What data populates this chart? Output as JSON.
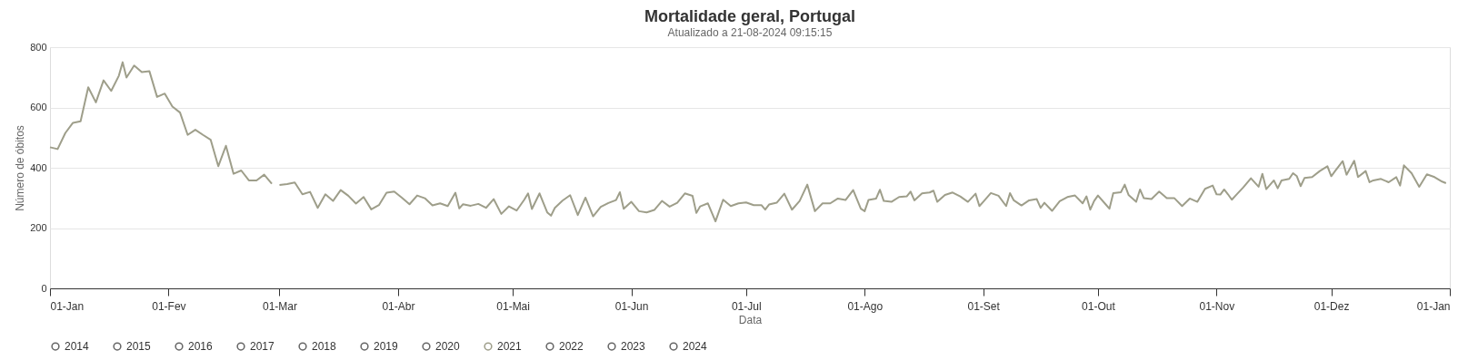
{
  "chart_data": {
    "type": "line",
    "title": "Mortalidade geral, Portugal",
    "subtitle": "Atualizado a 21-08-2024 09:15:15",
    "xlabel": "Data",
    "ylabel": "Número de óbitos",
    "ylim": [
      0,
      800
    ],
    "yticks": [
      0,
      200,
      400,
      600,
      800
    ],
    "xlim": [
      "2020-01-01",
      "2021-01-01"
    ],
    "xticks": [
      {
        "value": "2020-01-01",
        "label": "01-Jan"
      },
      {
        "value": "2020-02-01",
        "label": "01-Fev"
      },
      {
        "value": "2020-03-01",
        "label": "01-Mar"
      },
      {
        "value": "2020-04-01",
        "label": "01-Abr"
      },
      {
        "value": "2020-05-01",
        "label": "01-Mai"
      },
      {
        "value": "2020-06-01",
        "label": "01-Jun"
      },
      {
        "value": "2020-07-01",
        "label": "01-Jul"
      },
      {
        "value": "2020-08-01",
        "label": "01-Ago"
      },
      {
        "value": "2020-09-01",
        "label": "01-Set"
      },
      {
        "value": "2020-10-01",
        "label": "01-Out"
      },
      {
        "value": "2020-11-01",
        "label": "01-Nov"
      },
      {
        "value": "2020-12-01",
        "label": "01-Dez"
      },
      {
        "value": "2021-01-01",
        "label": "01-Jan"
      }
    ],
    "grid": "y",
    "legend": "bottom",
    "series": [
      {
        "name": "2014",
        "color": "#666666"
      },
      {
        "name": "2015",
        "color": "#666666"
      },
      {
        "name": "2016",
        "color": "#666666"
      },
      {
        "name": "2017",
        "color": "#666666"
      },
      {
        "name": "2018",
        "color": "#666666"
      },
      {
        "name": "2019",
        "color": "#666666"
      },
      {
        "name": "2020",
        "color": "#666666"
      },
      {
        "name": "2021",
        "color": "#9e9e8a",
        "x": [
          "2020-01-01",
          "2020-01-03",
          "2020-01-05",
          "2020-01-07",
          "2020-01-09",
          "2020-01-11",
          "2020-01-13",
          "2020-01-15",
          "2020-01-17",
          "2020-01-19",
          "2020-01-20",
          "2020-01-21",
          "2020-01-23",
          "2020-01-25",
          "2020-01-27",
          "2020-01-29",
          "2020-01-31",
          "2020-02-02",
          "2020-02-04",
          "2020-02-06",
          "2020-02-08",
          "2020-02-10",
          "2020-02-12",
          "2020-02-14",
          "2020-02-16",
          "2020-02-18",
          "2020-02-20",
          "2020-02-22",
          "2020-02-24",
          "2020-02-26",
          "2020-02-28",
          "2020-02-29",
          "2020-03-01",
          "2020-03-03",
          "2020-03-05",
          "2020-03-07",
          "2020-03-09",
          "2020-03-11",
          "2020-03-13",
          "2020-03-15",
          "2020-03-17",
          "2020-03-19",
          "2020-03-21",
          "2020-03-23",
          "2020-03-25",
          "2020-03-27",
          "2020-03-29",
          "2020-03-31",
          "2020-04-02",
          "2020-04-04",
          "2020-04-06",
          "2020-04-08",
          "2020-04-10",
          "2020-04-12",
          "2020-04-14",
          "2020-04-16",
          "2020-04-17",
          "2020-04-18",
          "2020-04-20",
          "2020-04-22",
          "2020-04-24",
          "2020-04-26",
          "2020-04-28",
          "2020-04-30",
          "2020-05-02",
          "2020-05-04",
          "2020-05-05",
          "2020-05-06",
          "2020-05-08",
          "2020-05-10",
          "2020-05-11",
          "2020-05-12",
          "2020-05-14",
          "2020-05-16",
          "2020-05-18",
          "2020-05-20",
          "2020-05-22",
          "2020-05-24",
          "2020-05-26",
          "2020-05-28",
          "2020-05-29",
          "2020-05-30",
          "2020-06-01",
          "2020-06-03",
          "2020-06-05",
          "2020-06-07",
          "2020-06-09",
          "2020-06-11",
          "2020-06-13",
          "2020-06-15",
          "2020-06-17",
          "2020-06-18",
          "2020-06-19",
          "2020-06-21",
          "2020-06-23",
          "2020-06-25",
          "2020-06-27",
          "2020-06-29",
          "2020-07-01",
          "2020-07-03",
          "2020-07-05",
          "2020-07-06",
          "2020-07-07",
          "2020-07-09",
          "2020-07-11",
          "2020-07-13",
          "2020-07-15",
          "2020-07-17",
          "2020-07-19",
          "2020-07-21",
          "2020-07-23",
          "2020-07-25",
          "2020-07-27",
          "2020-07-29",
          "2020-07-31",
          "2020-08-01",
          "2020-08-02",
          "2020-08-04",
          "2020-08-05",
          "2020-08-06",
          "2020-08-08",
          "2020-08-10",
          "2020-08-12",
          "2020-08-13",
          "2020-08-14",
          "2020-08-16",
          "2020-08-18",
          "2020-08-19",
          "2020-08-20",
          "2020-08-22",
          "2020-08-24",
          "2020-08-26",
          "2020-08-28",
          "2020-08-30",
          "2020-08-31",
          "2020-09-01",
          "2020-09-03",
          "2020-09-05",
          "2020-09-07",
          "2020-09-08",
          "2020-09-09",
          "2020-09-11",
          "2020-09-13",
          "2020-09-15",
          "2020-09-16",
          "2020-09-17",
          "2020-09-19",
          "2020-09-21",
          "2020-09-23",
          "2020-09-25",
          "2020-09-27",
          "2020-09-28",
          "2020-09-29",
          "2020-09-30",
          "2020-10-01",
          "2020-10-03",
          "2020-10-04",
          "2020-10-05",
          "2020-10-07",
          "2020-10-08",
          "2020-10-09",
          "2020-10-11",
          "2020-10-12",
          "2020-10-13",
          "2020-10-15",
          "2020-10-17",
          "2020-10-19",
          "2020-10-21",
          "2020-10-23",
          "2020-10-25",
          "2020-10-27",
          "2020-10-29",
          "2020-10-31",
          "2020-11-01",
          "2020-11-02",
          "2020-11-03",
          "2020-11-04",
          "2020-11-05",
          "2020-11-06",
          "2020-11-08",
          "2020-11-10",
          "2020-11-12",
          "2020-11-13",
          "2020-11-14",
          "2020-11-16",
          "2020-11-17",
          "2020-11-18",
          "2020-11-20",
          "2020-11-21",
          "2020-11-22",
          "2020-11-23",
          "2020-11-24",
          "2020-11-26",
          "2020-11-28",
          "2020-11-30",
          "2020-12-01",
          "2020-12-02",
          "2020-12-04",
          "2020-12-05",
          "2020-12-07",
          "2020-12-08",
          "2020-12-10",
          "2020-12-11",
          "2020-12-12",
          "2020-12-14",
          "2020-12-16",
          "2020-12-18",
          "2020-12-19",
          "2020-12-20",
          "2020-12-22",
          "2020-12-24",
          "2020-12-26",
          "2020-12-28",
          "2020-12-30",
          "2020-12-31"
        ],
        "values": [
          468,
          462,
          515,
          549,
          554,
          667,
          617,
          690,
          655,
          705,
          750,
          699,
          739,
          717,
          720,
          635,
          646,
          603,
          583,
          509,
          526,
          509,
          493,
          405,
          473,
          380,
          391,
          358,
          358,
          377,
          347,
          null,
          343,
          346,
          351,
          312,
          320,
          267,
          312,
          290,
          326,
          307,
          281,
          303,
          262,
          276,
          317,
          321,
          301,
          279,
          308,
          299,
          275,
          282,
          273,
          317,
          265,
          279,
          274,
          280,
          267,
          296,
          247,
          272,
          258,
          294,
          315,
          263,
          315,
          252,
          241,
          267,
          291,
          309,
          243,
          301,
          239,
          270,
          283,
          293,
          319,
          264,
          287,
          256,
          252,
          260,
          290,
          271,
          284,
          315,
          307,
          250,
          272,
          282,
          222,
          294,
          273,
          282,
          285,
          276,
          276,
          261,
          278,
          284,
          314,
          261,
          290,
          344,
          256,
          282,
          282,
          298,
          293,
          326,
          264,
          256,
          293,
          298,
          327,
          290,
          287,
          303,
          305,
          321,
          292,
          315,
          318,
          324,
          287,
          310,
          318,
          305,
          287,
          314,
          273,
          287,
          316,
          307,
          273,
          316,
          292,
          275,
          292,
          296,
          267,
          284,
          257,
          289,
          303,
          308,
          282,
          305,
          261,
          290,
          308,
          279,
          264,
          316,
          319,
          344,
          310,
          287,
          328,
          299,
          296,
          321,
          299,
          299,
          273,
          298,
          287,
          330,
          341,
          312,
          311,
          328,
          312,
          294,
          308,
          335,
          365,
          337,
          380,
          329,
          358,
          332,
          358,
          363,
          382,
          372,
          339,
          366,
          369,
          389,
          405,
          372,
          389,
          422,
          377,
          423,
          369,
          389,
          352,
          358,
          363,
          352,
          369,
          341,
          408,
          382,
          337,
          378,
          369,
          354,
          349
        ]
      },
      {
        "name": "2022",
        "color": "#666666"
      },
      {
        "name": "2023",
        "color": "#666666"
      },
      {
        "name": "2024",
        "color": "#666666"
      }
    ]
  }
}
